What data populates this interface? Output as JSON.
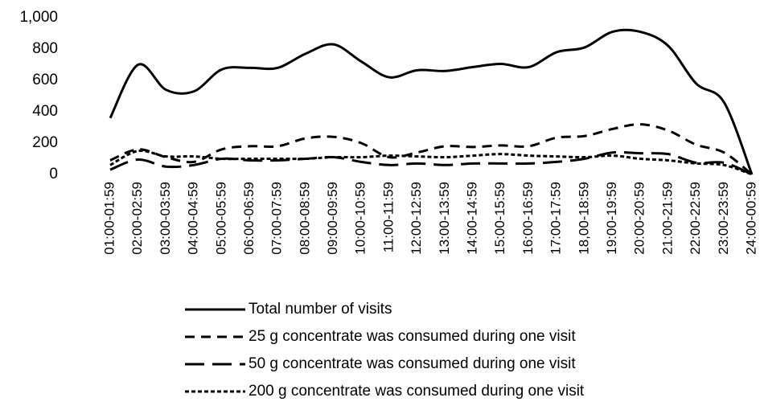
{
  "chart_data": {
    "type": "line",
    "categories": [
      "01:00-01:59",
      "02:00-02:59",
      "03:00-03:59",
      "04:00-04:59",
      "05:00-05:59",
      "06:00-06:59",
      "07:00-07:59",
      "08:00-08:59",
      "09:00-09:59",
      "10:00-10:59",
      "11:00-11:59",
      "12:00-12:59",
      "13:00-13:59",
      "14:00-14:59",
      "15:00-15:59",
      "16:00-16:59",
      "17:00-17:59",
      "18,00-18:59",
      "19:00-19:59",
      "20:00-20:59",
      "21:00-21:59",
      "22:00-22:59",
      "23:00-23:59",
      "24:00-00:59"
    ],
    "series": [
      {
        "name": "Total number of visits",
        "color": "#000000",
        "dash": "none",
        "values": [
          360,
          700,
          540,
          530,
          670,
          680,
          680,
          770,
          830,
          720,
          620,
          665,
          660,
          685,
          705,
          685,
          780,
          810,
          910,
          910,
          820,
          580,
          460,
          0
        ]
      },
      {
        "name": "25 g concentrate was consumed during one visit",
        "color": "#000000",
        "dash": "12 8",
        "values": [
          90,
          160,
          110,
          80,
          160,
          180,
          180,
          230,
          240,
          200,
          110,
          140,
          180,
          175,
          185,
          180,
          235,
          245,
          290,
          320,
          280,
          190,
          140,
          0
        ]
      },
      {
        "name": "50 g concentrate was consumed during one visit",
        "color": "#000000",
        "dash": "24 10",
        "values": [
          30,
          95,
          50,
          60,
          100,
          90,
          90,
          100,
          110,
          80,
          60,
          70,
          60,
          70,
          70,
          70,
          80,
          100,
          140,
          135,
          130,
          75,
          75,
          0
        ]
      },
      {
        "name": "200 g concentrate was consumed during one visit",
        "color": "#000000",
        "dash": "5 3",
        "values": [
          60,
          150,
          115,
          115,
          100,
          100,
          100,
          100,
          110,
          110,
          120,
          115,
          110,
          120,
          130,
          120,
          115,
          110,
          120,
          100,
          90,
          70,
          60,
          0
        ]
      }
    ],
    "ylim": [
      0,
      1000
    ],
    "yticks": [
      0,
      200,
      400,
      600,
      800,
      {
        "value": 1000,
        "label": "1,000"
      }
    ],
    "grid": false
  }
}
